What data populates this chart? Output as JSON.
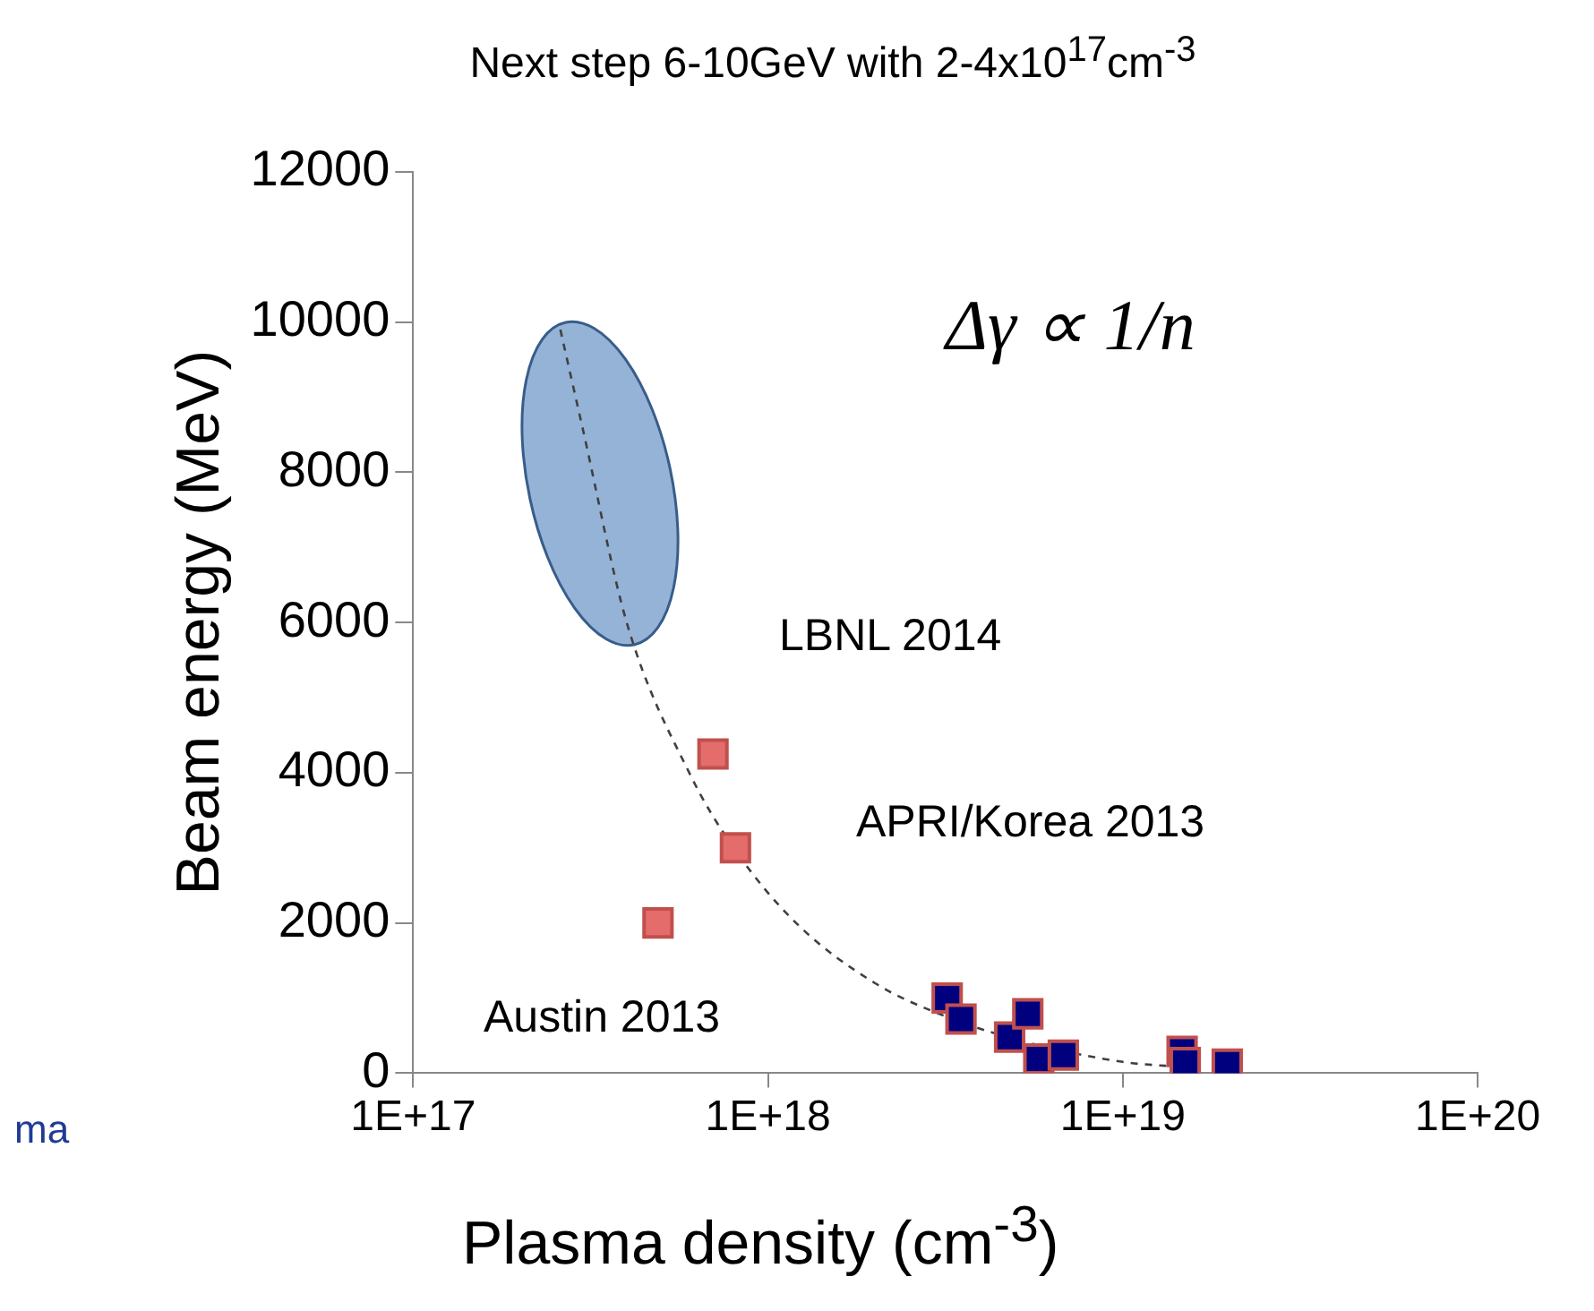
{
  "chart_data": {
    "type": "scatter",
    "title": "Next step 6-10GeV with 2-4x10$^{17}$cm$^{-3}$",
    "xlabel": "Plasma density (cm$^{-3}$)",
    "ylabel": "Beam energy (MeV)",
    "log": "x",
    "xlim": [
      1e+17,
      1e+20
    ],
    "xticks": [
      {
        "value": 1e+17,
        "label": "1E+17"
      },
      {
        "value": 1e+18,
        "label": "1E+18"
      },
      {
        "value": 1e+19,
        "label": "1E+19"
      },
      {
        "value": 1e+20,
        "label": "1E+20"
      }
    ],
    "ylim": [
      0,
      12000
    ],
    "yticks": [
      0,
      2000,
      4000,
      6000,
      8000,
      10000,
      12000
    ],
    "grid": false,
    "legend": false,
    "series": [
      {
        "type": "scatter",
        "marker": "square",
        "color": "#e46c6a",
        "x": [
          4.9e+17,
          7e+17,
          8.1e+17
        ],
        "values": [
          2000,
          4250,
          3000
        ]
      },
      {
        "type": "scatter",
        "marker": "square",
        "color": "#00007f",
        "x": [
          3.2e+18,
          3.5e+18,
          4.8e+18,
          5.4e+18,
          5.8e+18,
          6.8e+18,
          1.47e+19,
          1.5e+19,
          1.97e+19
        ],
        "values": [
          1000,
          720,
          480,
          790,
          190,
          240,
          290,
          140,
          120
        ]
      },
      {
        "type": "line",
        "marker": "none",
        "line_style": "dashed",
        "color": "#404040",
        "x": [
          2.6e+17,
          3e+17,
          4e+17,
          6e+17,
          8e+17,
          1.2e+18,
          2e+18,
          3e+18,
          5e+18,
          1e+19,
          1.5e+19
        ],
        "values": [
          9900,
          8600,
          6000,
          4000,
          3000,
          2000,
          1200,
          800,
          450,
          150,
          80
        ]
      }
    ],
    "annotations": [
      "Δγ ∝ 1/n",
      "ma",
      "LBNL 2014",
      "APRI/Korea 2013",
      "Austin 2013"
    ]
  }
}
